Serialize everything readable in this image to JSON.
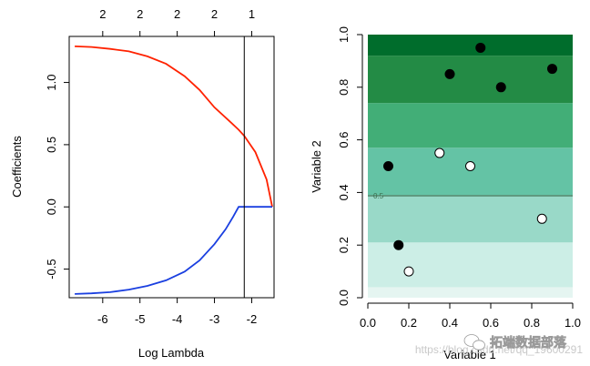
{
  "chart_data": [
    {
      "type": "line",
      "title": "",
      "xlabel": "Log Lambda",
      "ylabel": "Coefficients",
      "xlim": [
        -6.9,
        -1.4
      ],
      "ylim": [
        -0.73,
        1.37
      ],
      "x_ticks": [
        -6,
        -5,
        -4,
        -3,
        -2
      ],
      "x_tick_labels": [
        "-6",
        "-5",
        "-4",
        "-3",
        "-2"
      ],
      "y_ticks": [
        -0.5,
        0.0,
        0.5,
        1.0
      ],
      "y_tick_labels": [
        "-0.5",
        "0.0",
        "0.5",
        "1.0"
      ],
      "top_axis": {
        "ticks": [
          -6,
          -5,
          -4,
          -3,
          -2
        ],
        "labels": [
          "2",
          "2",
          "2",
          "2",
          "1"
        ]
      },
      "vline": {
        "x": -2.2
      },
      "grid": false,
      "series": [
        {
          "color": "#ff2200",
          "x": [
            -6.75,
            -6.3,
            -5.8,
            -5.3,
            -4.8,
            -4.3,
            -3.8,
            -3.4,
            -3.0,
            -2.6,
            -2.35,
            -2.2,
            -1.9,
            -1.6,
            -1.45
          ],
          "y": [
            1.29,
            1.285,
            1.27,
            1.25,
            1.21,
            1.15,
            1.05,
            0.94,
            0.8,
            0.69,
            0.62,
            0.57,
            0.44,
            0.22,
            0.0
          ]
        },
        {
          "color": "#1a3fe0",
          "x": [
            -6.75,
            -6.3,
            -5.8,
            -5.3,
            -4.8,
            -4.3,
            -3.8,
            -3.4,
            -3.0,
            -2.7,
            -2.5,
            -2.35,
            -2.2,
            -1.9,
            -1.6,
            -1.45
          ],
          "y": [
            -0.7,
            -0.695,
            -0.685,
            -0.665,
            -0.635,
            -0.59,
            -0.52,
            -0.43,
            -0.3,
            -0.18,
            -0.08,
            0.0,
            0.0,
            0.0,
            0.0,
            0.0
          ]
        }
      ]
    },
    {
      "type": "scatter",
      "title": "",
      "xlabel": "Variable 1",
      "ylabel": "Variable 2",
      "xlim": [
        0.0,
        1.0
      ],
      "ylim": [
        0.0,
        1.0
      ],
      "x_ticks": [
        0.0,
        0.2,
        0.4,
        0.6,
        0.8,
        1.0
      ],
      "x_tick_labels": [
        "0.0",
        "0.2",
        "0.4",
        "0.6",
        "0.8",
        "1.0"
      ],
      "y_ticks": [
        0.0,
        0.2,
        0.4,
        0.6,
        0.8,
        1.0
      ],
      "y_tick_labels": [
        "0.0",
        "0.2",
        "0.4",
        "0.6",
        "0.8",
        "1.0"
      ],
      "grid": false,
      "background_bands": [
        {
          "y0": 0.0,
          "y1": 0.04,
          "color": "#e5f5f1"
        },
        {
          "y0": 0.04,
          "y1": 0.21,
          "color": "#cceee6"
        },
        {
          "y0": 0.21,
          "y1": 0.39,
          "color": "#99d9c8"
        },
        {
          "y0": 0.39,
          "y1": 0.57,
          "color": "#64c3a5"
        },
        {
          "y0": 0.57,
          "y1": 0.74,
          "color": "#42ae77"
        },
        {
          "y0": 0.74,
          "y1": 0.92,
          "color": "#238b45"
        },
        {
          "y0": 0.92,
          "y1": 1.0,
          "color": "#006d2c"
        }
      ],
      "contour": {
        "y": 0.39,
        "label": "0.5"
      },
      "series": [
        {
          "marker": "filled",
          "color": "#000000",
          "x": [
            0.1,
            0.15,
            0.4,
            0.55,
            0.65,
            0.9
          ],
          "y": [
            0.5,
            0.2,
            0.85,
            0.95,
            0.8,
            0.87
          ]
        },
        {
          "marker": "open",
          "color": "#ffffff",
          "x": [
            0.2,
            0.35,
            0.5,
            0.85
          ],
          "y": [
            0.1,
            0.55,
            0.5,
            0.3
          ]
        }
      ]
    }
  ],
  "watermark": {
    "url_text": "https://blog.csdn.net/qq_19600291",
    "brand_text": "拓端数据部落"
  }
}
